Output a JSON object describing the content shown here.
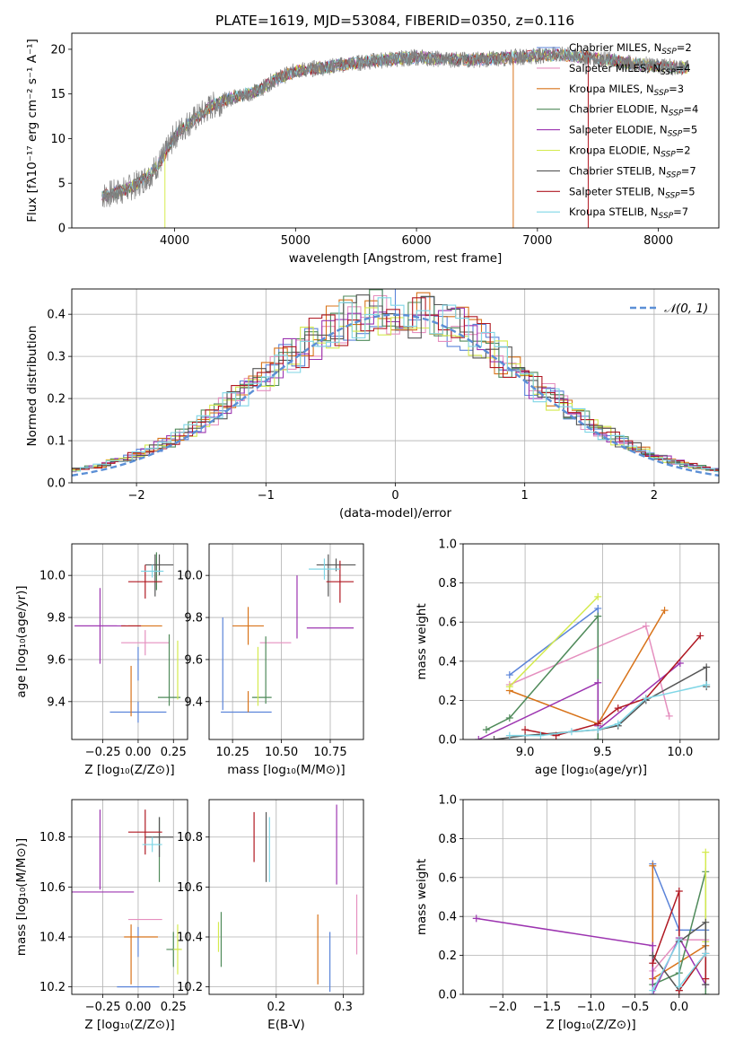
{
  "title": "PLATE=1619, MJD=53084, FIBERID=0350, z=0.116",
  "colors": {
    "Chabrier MILES": "#5b84d9",
    "Salpeter MILES": "#e58fbf",
    "Kroupa MILES": "#d8731a",
    "Chabrier ELODIE": "#4f8a5a",
    "Salpeter ELODIE": "#9c34b0",
    "Kroupa ELODIE": "#d4ea4e",
    "Chabrier STELIB": "#555555",
    "Salpeter STELIB": "#b01822",
    "Kroupa STELIB": "#7fd6e6",
    "data": "#808080",
    "normal": "#5b8fd6"
  },
  "chart_data": [
    {
      "type": "line",
      "id": "spectrum",
      "title": "PLATE=1619, MJD=53084, FIBERID=0350, z=0.116",
      "xlabel": "wavelength [Angstrom, rest frame]",
      "ylabel": "Flux [fλ10⁻¹⁷ erg cm⁻² s⁻¹ A⁻¹]",
      "xlim": [
        3150,
        8500
      ],
      "ylim": [
        0,
        21.8
      ],
      "xticks": [
        4000,
        5000,
        6000,
        7000,
        8000
      ],
      "yticks": [
        0,
        5,
        10,
        15,
        20
      ],
      "continuum": {
        "x": [
          3400,
          3500,
          3600,
          3700,
          3800,
          3900,
          4000,
          4100,
          4200,
          4300,
          4400,
          4500,
          4600,
          4700,
          4800,
          4900,
          5000,
          5200,
          5400,
          5600,
          5800,
          6000,
          6200,
          6400,
          6600,
          6800,
          7000,
          7200,
          7400,
          7600,
          7800,
          8000,
          8250
        ],
        "y": [
          3.6,
          3.9,
          4.3,
          5.0,
          6.0,
          7.8,
          10.3,
          11.6,
          12.5,
          13.6,
          14.2,
          14.7,
          15.0,
          15.4,
          16.4,
          17.0,
          17.6,
          17.9,
          18.3,
          18.6,
          18.9,
          19.1,
          18.9,
          18.8,
          18.9,
          19.1,
          19.3,
          19.4,
          19.1,
          18.8,
          18.4,
          18.1,
          17.9
        ]
      },
      "legend": [
        {
          "name": "Chabrier MILES",
          "nssp": "=2"
        },
        {
          "name": "Salpeter MILES",
          "nssp": "=4"
        },
        {
          "name": "Kroupa MILES",
          "nssp": "=3"
        },
        {
          "name": "Chabrier ELODIE",
          "nssp": "=4"
        },
        {
          "name": "Salpeter ELODIE",
          "nssp": "=5"
        },
        {
          "name": "Kroupa ELODIE",
          "nssp": "=2"
        },
        {
          "name": "Chabrier STELIB",
          "nssp": "=7"
        },
        {
          "name": "Salpeter STELIB",
          "nssp": "=5"
        },
        {
          "name": "Kroupa STELIB",
          "nssp": "=7"
        }
      ]
    },
    {
      "type": "line",
      "id": "residuals",
      "xlabel": "(data-model)/error",
      "ylabel": "Normed distribution",
      "xlim": [
        -2.5,
        2.5
      ],
      "ylim": [
        0,
        0.46
      ],
      "xticks": [
        -2,
        -1,
        0,
        1,
        2
      ],
      "yticks": [
        0.0,
        0.1,
        0.2,
        0.3,
        0.4
      ],
      "grid": true,
      "bin_width": 0.1,
      "legend": "𝒩(0, 1)",
      "curve": "normal(0,1) pdf"
    },
    {
      "type": "scatter",
      "id": "z-age",
      "xlabel": "Z [log₁₀(Z/Z⊙)]",
      "ylabel": "age  [log₁₀(age/yr)]",
      "xlim": [
        -0.47,
        0.35
      ],
      "ylim": [
        9.22,
        10.15
      ],
      "xticks": [
        -0.25,
        0.0,
        0.25
      ],
      "yticks": [
        9.4,
        9.6,
        9.8,
        10.0
      ],
      "grid": true,
      "points": [
        {
          "model": "Chabrier MILES",
          "x": 0.0,
          "y": 9.35,
          "xerr": 0.2,
          "yerr": 0.05
        },
        {
          "model": "Chabrier MILES",
          "x": 0.0,
          "y": 9.58,
          "xerr": 0.0,
          "yerr": 0.08
        },
        {
          "model": "Salpeter MILES",
          "x": 0.05,
          "y": 9.68,
          "xerr": 0.17,
          "yerr": 0.06
        },
        {
          "model": "Kroupa MILES",
          "x": -0.05,
          "y": 9.45,
          "xerr": 0.0,
          "yerr": 0.12
        },
        {
          "model": "Kroupa MILES",
          "x": 0.05,
          "y": 9.76,
          "xerr": 0.12,
          "yerr": 0.0
        },
        {
          "model": "Chabrier ELODIE",
          "x": 0.22,
          "y": 9.55,
          "xerr": 0.0,
          "yerr": 0.17
        },
        {
          "model": "Chabrier ELODIE",
          "x": 0.22,
          "y": 9.42,
          "xerr": 0.08,
          "yerr": 0.0
        },
        {
          "model": "Chabrier ELODIE",
          "x": 0.13,
          "y": 10.02,
          "xerr": 0.0,
          "yerr": 0.09
        },
        {
          "model": "Salpeter ELODIE",
          "x": -0.27,
          "y": 9.76,
          "xerr": 0.18,
          "yerr": 0.18
        },
        {
          "model": "Salpeter ELODIE",
          "x": -0.3,
          "y": 9.76,
          "xerr": 0.15,
          "yerr": 0.0
        },
        {
          "model": "Kroupa ELODIE",
          "x": 0.28,
          "y": 9.55,
          "xerr": 0.0,
          "yerr": 0.14
        },
        {
          "model": "Chabrier STELIB",
          "x": 0.15,
          "y": 10.05,
          "xerr": 0.1,
          "yerr": 0.05
        },
        {
          "model": "Chabrier STELIB",
          "x": 0.12,
          "y": 10.0,
          "xerr": 0.0,
          "yerr": 0.1
        },
        {
          "model": "Salpeter STELIB",
          "x": 0.05,
          "y": 9.97,
          "xerr": 0.12,
          "yerr": 0.08
        },
        {
          "model": "Salpeter STELIB",
          "x": -0.05,
          "y": 9.76,
          "xerr": 0.07,
          "yerr": 0.0
        },
        {
          "model": "Kroupa STELIB",
          "x": 0.1,
          "y": 10.02,
          "xerr": 0.08,
          "yerr": 0.03
        }
      ]
    },
    {
      "type": "scatter",
      "id": "mass-age",
      "xlabel": "mass [log₁₀(M/M⊙)]",
      "ylabel": "",
      "xlim": [
        10.13,
        10.92
      ],
      "ylim": [
        9.22,
        10.15
      ],
      "xticks": [
        10.25,
        10.5,
        10.75
      ],
      "yticks": [
        9.4,
        9.6,
        9.8,
        10.0
      ],
      "grid": true,
      "points": [
        {
          "model": "Chabrier MILES",
          "x": 10.32,
          "y": 9.35,
          "xerr": 0.13,
          "yerr": 0.0
        },
        {
          "model": "Chabrier MILES",
          "x": 10.2,
          "y": 9.58,
          "xerr": 0.0,
          "yerr": 0.22
        },
        {
          "model": "Salpeter MILES",
          "x": 10.47,
          "y": 9.68,
          "xerr": 0.08,
          "yerr": 0.0
        },
        {
          "model": "Kroupa MILES",
          "x": 10.33,
          "y": 9.76,
          "xerr": 0.08,
          "yerr": 0.09
        },
        {
          "model": "Kroupa MILES",
          "x": 10.33,
          "y": 9.4,
          "xerr": 0.0,
          "yerr": 0.05
        },
        {
          "model": "Chabrier ELODIE",
          "x": 10.4,
          "y": 9.42,
          "xerr": 0.05,
          "yerr": 0.0
        },
        {
          "model": "Chabrier ELODIE",
          "x": 10.42,
          "y": 9.55,
          "xerr": 0.0,
          "yerr": 0.16
        },
        {
          "model": "Salpeter ELODIE",
          "x": 10.75,
          "y": 9.75,
          "xerr": 0.12,
          "yerr": 0.0
        },
        {
          "model": "Salpeter ELODIE",
          "x": 10.58,
          "y": 9.85,
          "xerr": 0.0,
          "yerr": 0.15
        },
        {
          "model": "Kroupa ELODIE",
          "x": 10.38,
          "y": 9.52,
          "xerr": 0.0,
          "yerr": 0.14
        },
        {
          "model": "Chabrier STELIB",
          "x": 10.78,
          "y": 10.05,
          "xerr": 0.1,
          "yerr": 0.03
        },
        {
          "model": "Chabrier STELIB",
          "x": 10.74,
          "y": 10.0,
          "xerr": 0.0,
          "yerr": 0.1
        },
        {
          "model": "Salpeter STELIB",
          "x": 10.8,
          "y": 9.97,
          "xerr": 0.07,
          "yerr": 0.1
        },
        {
          "model": "Kroupa STELIB",
          "x": 10.72,
          "y": 10.03,
          "xerr": 0.08,
          "yerr": 0.05
        }
      ]
    },
    {
      "type": "line",
      "id": "age-weight",
      "xlabel": "age  [log₁₀(age/yr)]",
      "ylabel": "mass weight",
      "xlim": [
        8.6,
        10.25
      ],
      "ylim": [
        0,
        1.0
      ],
      "xticks": [
        9.0,
        9.5,
        10.0
      ],
      "yticks": [
        0.0,
        0.2,
        0.4,
        0.6,
        0.8,
        1.0
      ],
      "grid": true,
      "series": [
        {
          "model": "Chabrier MILES",
          "x": [
            8.9,
            9.47,
            9.47
          ],
          "y": [
            0.33,
            0.67,
            0.0
          ]
        },
        {
          "model": "Salpeter MILES",
          "x": [
            8.9,
            9.78,
            9.93
          ],
          "y": [
            0.28,
            0.58,
            0.12
          ]
        },
        {
          "model": "Kroupa MILES",
          "x": [
            8.9,
            9.47,
            9.9
          ],
          "y": [
            0.25,
            0.08,
            0.66
          ]
        },
        {
          "model": "Chabrier ELODIE",
          "x": [
            8.75,
            8.9,
            9.47,
            9.47
          ],
          "y": [
            0.05,
            0.11,
            0.63,
            0.0
          ]
        },
        {
          "model": "Salpeter ELODIE",
          "x": [
            8.7,
            9.47,
            9.47,
            9.47,
            10.0
          ],
          "y": [
            0.0,
            0.29,
            0.07,
            0.05,
            0.39
          ]
        },
        {
          "model": "Kroupa ELODIE",
          "x": [
            8.9,
            9.47
          ],
          "y": [
            0.27,
            0.73
          ]
        },
        {
          "model": "Chabrier STELIB",
          "x": [
            8.8,
            9.0,
            9.47,
            9.6,
            9.78,
            10.17,
            10.17
          ],
          "y": [
            0.0,
            0.02,
            0.05,
            0.07,
            0.2,
            0.37,
            0.27
          ]
        },
        {
          "model": "Salpeter STELIB",
          "x": [
            9.0,
            9.2,
            9.47,
            9.6,
            9.78,
            10.13
          ],
          "y": [
            0.05,
            0.02,
            0.08,
            0.16,
            0.21,
            0.53
          ]
        },
        {
          "model": "Kroupa STELIB",
          "x": [
            8.9,
            9.1,
            9.3,
            9.47,
            9.6,
            9.78,
            10.17
          ],
          "y": [
            0.02,
            0.02,
            0.04,
            0.05,
            0.08,
            0.21,
            0.28
          ]
        }
      ]
    },
    {
      "type": "scatter",
      "id": "z-mass",
      "xlabel": "Z [log₁₀(Z/Z⊙)]",
      "ylabel": "mass [log₁₀(M/M⊙)]",
      "xlim": [
        -0.47,
        0.35
      ],
      "ylim": [
        10.17,
        10.95
      ],
      "xticks": [
        -0.25,
        0.0,
        0.25
      ],
      "yticks": [
        10.2,
        10.4,
        10.6,
        10.8
      ],
      "grid": true,
      "points": [
        {
          "model": "Chabrier MILES",
          "x": 0.0,
          "y": 10.2,
          "xerr": 0.15,
          "yerr": 0.0
        },
        {
          "model": "Chabrier MILES",
          "x": 0.0,
          "y": 10.38,
          "xerr": 0.0,
          "yerr": 0.06
        },
        {
          "model": "Salpeter MILES",
          "x": 0.05,
          "y": 10.47,
          "xerr": 0.12,
          "yerr": 0.0
        },
        {
          "model": "Kroupa MILES",
          "x": -0.05,
          "y": 10.33,
          "xerr": 0.0,
          "yerr": 0.12
        },
        {
          "model": "Kroupa MILES",
          "x": 0.02,
          "y": 10.4,
          "xerr": 0.12,
          "yerr": 0.0
        },
        {
          "model": "Chabrier ELODIE",
          "x": 0.25,
          "y": 10.35,
          "xerr": 0.05,
          "yerr": 0.07
        },
        {
          "model": "Chabrier ELODIE",
          "x": 0.15,
          "y": 10.75,
          "xerr": 0.0,
          "yerr": 0.13
        },
        {
          "model": "Salpeter ELODIE",
          "x": -0.25,
          "y": 10.58,
          "xerr": 0.22,
          "yerr": 0.0
        },
        {
          "model": "Salpeter ELODIE",
          "x": -0.27,
          "y": 10.75,
          "xerr": 0.0,
          "yerr": 0.16
        },
        {
          "model": "Kroupa ELODIE",
          "x": 0.28,
          "y": 10.35,
          "xerr": 0.03,
          "yerr": 0.1
        },
        {
          "model": "Chabrier STELIB",
          "x": 0.15,
          "y": 10.8,
          "xerr": 0.1,
          "yerr": 0.08
        },
        {
          "model": "Salpeter STELIB",
          "x": 0.05,
          "y": 10.82,
          "xerr": 0.12,
          "yerr": 0.09
        },
        {
          "model": "Kroupa STELIB",
          "x": 0.1,
          "y": 10.77,
          "xerr": 0.07,
          "yerr": 0.03
        }
      ]
    },
    {
      "type": "scatter",
      "id": "ebv-mass",
      "xlabel": "E(B-V)",
      "ylabel": "",
      "xlim": [
        0.1,
        0.33
      ],
      "ylim": [
        10.17,
        10.95
      ],
      "xticks": [
        0.2,
        0.3
      ],
      "yticks": [
        10.2,
        10.4,
        10.6,
        10.8
      ],
      "grid": true,
      "points": [
        {
          "model": "Chabrier MILES",
          "x": 0.28,
          "y": 10.3,
          "yerr": 0.12
        },
        {
          "model": "Salpeter MILES",
          "x": 0.32,
          "y": 10.45,
          "yerr": 0.12
        },
        {
          "model": "Kroupa MILES",
          "x": 0.262,
          "y": 10.35,
          "yerr": 0.14
        },
        {
          "model": "Chabrier ELODIE",
          "x": 0.118,
          "y": 10.39,
          "yerr": 0.11
        },
        {
          "model": "Salpeter ELODIE",
          "x": 0.29,
          "y": 10.77,
          "yerr": 0.16
        },
        {
          "model": "Kroupa ELODIE",
          "x": 0.114,
          "y": 10.4,
          "yerr": 0.06
        },
        {
          "model": "Chabrier STELIB",
          "x": 0.185,
          "y": 10.76,
          "yerr": 0.14
        },
        {
          "model": "Salpeter STELIB",
          "x": 0.167,
          "y": 10.8,
          "yerr": 0.1
        },
        {
          "model": "Kroupa STELIB",
          "x": 0.19,
          "y": 10.75,
          "yerr": 0.13
        }
      ]
    },
    {
      "type": "line",
      "id": "z-weight",
      "xlabel": "Z [log₁₀(Z/Z⊙)]",
      "ylabel": "mass weight",
      "xlim": [
        -2.45,
        0.45
      ],
      "ylim": [
        0,
        1.0
      ],
      "xticks": [
        -2.0,
        -1.5,
        -1.0,
        -0.5,
        0.0
      ],
      "yticks": [
        0.0,
        0.2,
        0.4,
        0.6,
        0.8,
        1.0
      ],
      "grid": true,
      "series": [
        {
          "model": "Chabrier MILES",
          "x": [
            -0.3,
            0.0,
            0.3
          ],
          "y": [
            0.67,
            0.33,
            0.33
          ]
        },
        {
          "model": "Salpeter MILES",
          "x": [
            -0.3,
            0.0,
            0.3
          ],
          "y": [
            0.12,
            0.28,
            0.28
          ]
        },
        {
          "model": "Kroupa MILES",
          "x": [
            -0.3,
            -0.3,
            0.3
          ],
          "y": [
            0.66,
            0.08,
            0.25
          ]
        },
        {
          "model": "Chabrier ELODIE",
          "x": [
            -0.3,
            0.0,
            0.3,
            0.3
          ],
          "y": [
            0.05,
            0.11,
            0.63,
            0.0
          ]
        },
        {
          "model": "Salpeter ELODIE",
          "x": [
            -2.3,
            -0.3,
            -0.3,
            0.0,
            0.3
          ],
          "y": [
            0.39,
            0.25,
            0.0,
            0.29,
            0.05
          ]
        },
        {
          "model": "Kroupa ELODIE",
          "x": [
            0.3,
            0.3
          ],
          "y": [
            0.27,
            0.73
          ]
        },
        {
          "model": "Chabrier STELIB",
          "x": [
            -0.3,
            0.0,
            0.0,
            0.3,
            0.3
          ],
          "y": [
            0.2,
            0.02,
            0.27,
            0.37,
            0.05
          ]
        },
        {
          "model": "Salpeter STELIB",
          "x": [
            -0.3,
            0.0,
            0.0,
            0.3,
            0.3
          ],
          "y": [
            0.16,
            0.53,
            0.02,
            0.21,
            0.08
          ]
        },
        {
          "model": "Kroupa STELIB",
          "x": [
            -0.3,
            0.0,
            0.0,
            0.3
          ],
          "y": [
            0.02,
            0.28,
            0.04,
            0.21
          ]
        }
      ]
    }
  ]
}
